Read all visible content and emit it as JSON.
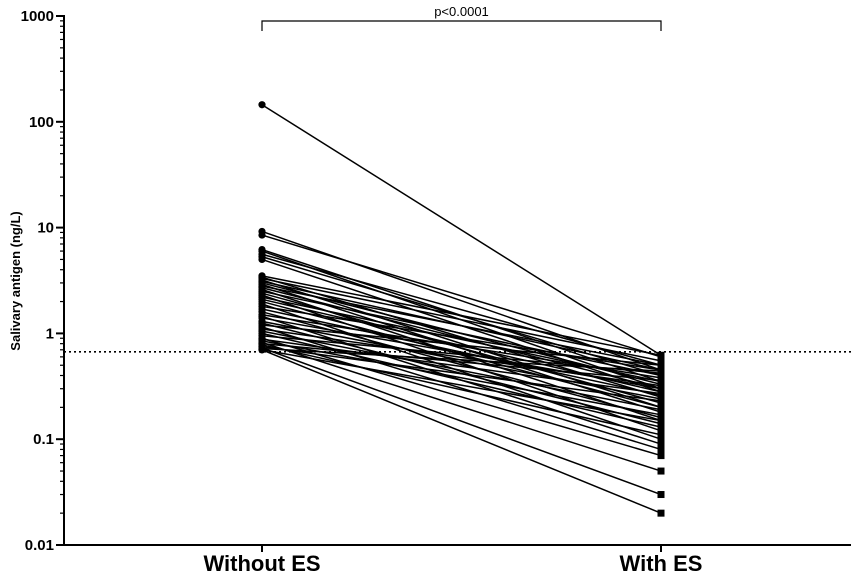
{
  "chart_data": {
    "type": "line",
    "ylabel": "Salivary antigen (ng/L)",
    "xlabel": "",
    "categories": [
      "Without ES",
      "With ES"
    ],
    "y_scale": "log",
    "ylim": [
      0.01,
      1000
    ],
    "y_ticks": [
      {
        "value": 0.01,
        "label": "0.01"
      },
      {
        "value": 0.1,
        "label": "0.1"
      },
      {
        "value": 1,
        "label": "1"
      },
      {
        "value": 10,
        "label": "10"
      },
      {
        "value": 100,
        "label": "100"
      },
      {
        "value": 1000,
        "label": "1000"
      }
    ],
    "reference_line": {
      "value": 0.67,
      "style": "dotted"
    },
    "significance": {
      "label": "p<0.0001",
      "between": [
        "Without ES",
        "With ES"
      ]
    },
    "markers": {
      "Without ES": "circle",
      "With ES": "square"
    },
    "line_color": "#000000",
    "grid": false,
    "pairs": [
      [
        145,
        0.62
      ],
      [
        9.2,
        0.45
      ],
      [
        8.5,
        0.6
      ],
      [
        6.2,
        0.35
      ],
      [
        6.0,
        0.3
      ],
      [
        5.6,
        0.5
      ],
      [
        5.3,
        0.4
      ],
      [
        5.0,
        0.28
      ],
      [
        3.5,
        0.62
      ],
      [
        3.4,
        0.25
      ],
      [
        3.3,
        0.55
      ],
      [
        3.2,
        0.2
      ],
      [
        3.1,
        0.45
      ],
      [
        3.0,
        0.33
      ],
      [
        2.9,
        0.18
      ],
      [
        2.8,
        0.5
      ],
      [
        2.7,
        0.3
      ],
      [
        2.6,
        0.15
      ],
      [
        2.5,
        0.4
      ],
      [
        2.4,
        0.22
      ],
      [
        2.3,
        0.12
      ],
      [
        2.2,
        0.35
      ],
      [
        2.1,
        0.28
      ],
      [
        2.0,
        0.2
      ],
      [
        1.9,
        0.1
      ],
      [
        1.8,
        0.45
      ],
      [
        1.7,
        0.26
      ],
      [
        1.6,
        0.16
      ],
      [
        1.5,
        0.38
      ],
      [
        1.45,
        0.09
      ],
      [
        1.4,
        0.3
      ],
      [
        1.3,
        0.24
      ],
      [
        1.25,
        0.14
      ],
      [
        1.2,
        0.5
      ],
      [
        1.15,
        0.08
      ],
      [
        1.1,
        0.32
      ],
      [
        1.05,
        0.19
      ],
      [
        1.0,
        0.13
      ],
      [
        0.95,
        0.42
      ],
      [
        0.9,
        0.07
      ],
      [
        0.88,
        0.27
      ],
      [
        0.85,
        0.17
      ],
      [
        0.82,
        0.05
      ],
      [
        0.8,
        0.36
      ],
      [
        0.78,
        0.11
      ],
      [
        0.75,
        0.23
      ],
      [
        0.73,
        0.03
      ],
      [
        0.72,
        0.44
      ],
      [
        0.7,
        0.02
      ],
      [
        0.7,
        0.15
      ]
    ]
  }
}
